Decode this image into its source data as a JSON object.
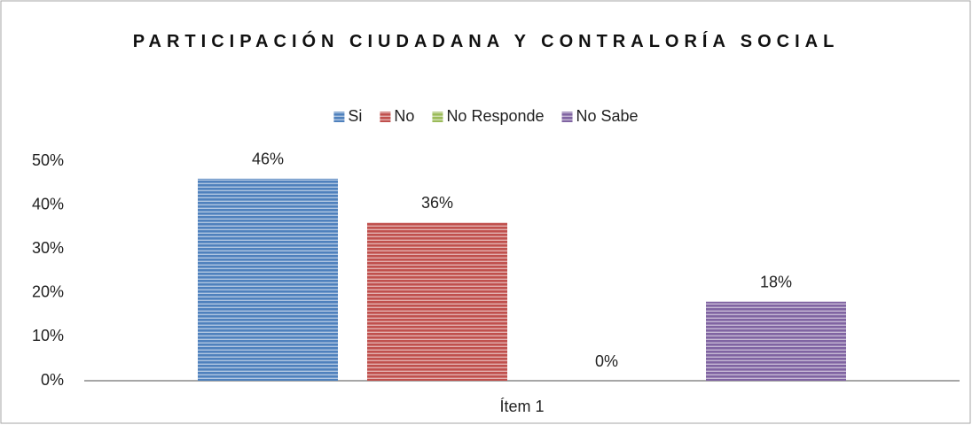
{
  "chart_data": {
    "type": "bar",
    "title": "PARTICIPACIÓN CIUDADANA Y CONTRALORÍA SOCIAL",
    "categories": [
      "Ítem 1"
    ],
    "series": [
      {
        "name": "Si",
        "color": "#4f81bd",
        "values": [
          46
        ],
        "value_labels": [
          "46%"
        ]
      },
      {
        "name": "No",
        "color": "#c0504d",
        "values": [
          36
        ],
        "value_labels": [
          "36%"
        ]
      },
      {
        "name": "No Responde",
        "color": "#9bbb59",
        "values": [
          0
        ],
        "value_labels": [
          "0%"
        ]
      },
      {
        "name": "No Sabe",
        "color": "#8064a2",
        "values": [
          18
        ],
        "value_labels": [
          "18%"
        ]
      }
    ],
    "ylim": [
      0,
      50
    ],
    "yticks": [
      {
        "value": 0,
        "label": "0%"
      },
      {
        "value": 10,
        "label": "10%"
      },
      {
        "value": 20,
        "label": "20%"
      },
      {
        "value": 30,
        "label": "30%"
      },
      {
        "value": 40,
        "label": "40%"
      },
      {
        "value": 50,
        "label": "50%"
      }
    ],
    "grid": false,
    "legend": "top"
  }
}
